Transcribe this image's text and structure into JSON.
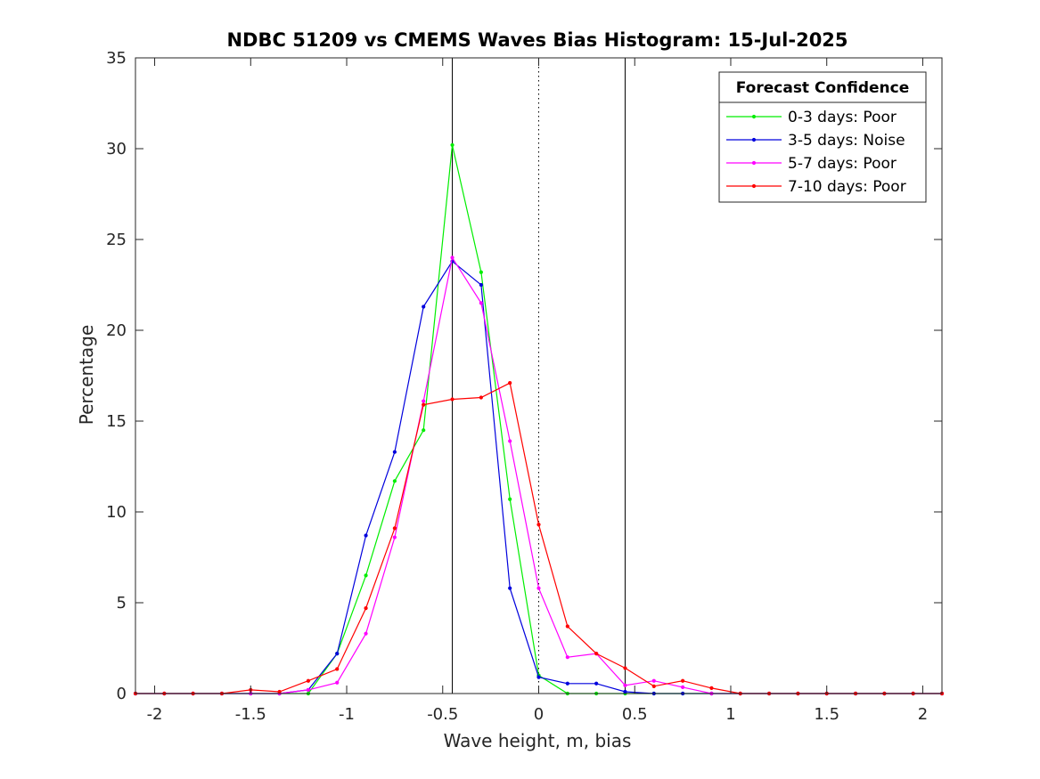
{
  "chart_data": {
    "type": "line",
    "title": "NDBC 51209 vs CMEMS Waves Bias Histogram: 15-Jul-2025",
    "xlabel": "Wave height, m, bias",
    "ylabel": "Percentage",
    "xlim": [
      -2.1,
      2.1
    ],
    "ylim": [
      0,
      35
    ],
    "xticks": [
      -2,
      -1.5,
      -1,
      -0.5,
      0,
      0.5,
      1,
      1.5,
      2
    ],
    "xtick_labels": [
      "-2",
      "-1.5",
      "-1",
      "-0.5",
      "0",
      "0.5",
      "1",
      "1.5",
      "2"
    ],
    "yticks": [
      0,
      5,
      10,
      15,
      20,
      25,
      30,
      35
    ],
    "ytick_labels": [
      "0",
      "5",
      "10",
      "15",
      "20",
      "25",
      "30",
      "35"
    ],
    "grid": false,
    "reference_lines": [
      {
        "x": -0.45,
        "style": "solid",
        "color": "#000000"
      },
      {
        "x": 0,
        "style": "dotted",
        "color": "#000000"
      },
      {
        "x": 0.45,
        "style": "solid",
        "color": "#000000"
      }
    ],
    "legend": {
      "title": "Forecast Confidence",
      "position": "top-right"
    },
    "x": [
      -2.1,
      -1.95,
      -1.8,
      -1.65,
      -1.5,
      -1.35,
      -1.2,
      -1.05,
      -0.9,
      -0.75,
      -0.6,
      -0.45,
      -0.3,
      -0.15,
      0,
      0.15,
      0.3,
      0.45,
      0.6,
      0.75,
      0.9,
      1.05,
      1.2,
      1.35,
      1.5,
      1.65,
      1.8,
      1.95,
      2.1
    ],
    "series": [
      {
        "name": "0-3 days: Poor",
        "color": "#00ee00",
        "values": [
          0,
          0,
          0,
          0,
          0,
          0,
          0,
          2.2,
          6.5,
          11.7,
          14.5,
          30.2,
          23.2,
          10.7,
          1.0,
          0,
          0,
          0,
          0,
          0,
          0,
          0,
          0,
          0,
          0,
          0,
          0,
          0,
          0
        ]
      },
      {
        "name": "3-5 days: Noise",
        "color": "#0000dd",
        "values": [
          0,
          0,
          0,
          0,
          0,
          0,
          0.2,
          2.2,
          8.7,
          13.3,
          21.3,
          23.8,
          22.5,
          5.8,
          0.9,
          0.55,
          0.55,
          0.1,
          0,
          0,
          0,
          0,
          0,
          0,
          0,
          0,
          0,
          0,
          0
        ]
      },
      {
        "name": "5-7 days: Poor",
        "color": "#ff00ff",
        "values": [
          0,
          0,
          0,
          0,
          0,
          0,
          0.2,
          0.6,
          3.3,
          8.6,
          16.1,
          24.0,
          21.5,
          13.9,
          5.8,
          2.0,
          2.2,
          0.45,
          0.7,
          0.35,
          0,
          0,
          0,
          0,
          0,
          0,
          0,
          0,
          0
        ]
      },
      {
        "name": "7-10 days: Poor",
        "color": "#ff0000",
        "values": [
          0,
          0,
          0,
          0,
          0.2,
          0.1,
          0.7,
          1.35,
          4.7,
          9.1,
          15.9,
          16.2,
          16.3,
          17.1,
          9.3,
          3.7,
          2.2,
          1.4,
          0.4,
          0.7,
          0.3,
          0,
          0,
          0,
          0,
          0,
          0,
          0,
          0
        ]
      }
    ]
  }
}
